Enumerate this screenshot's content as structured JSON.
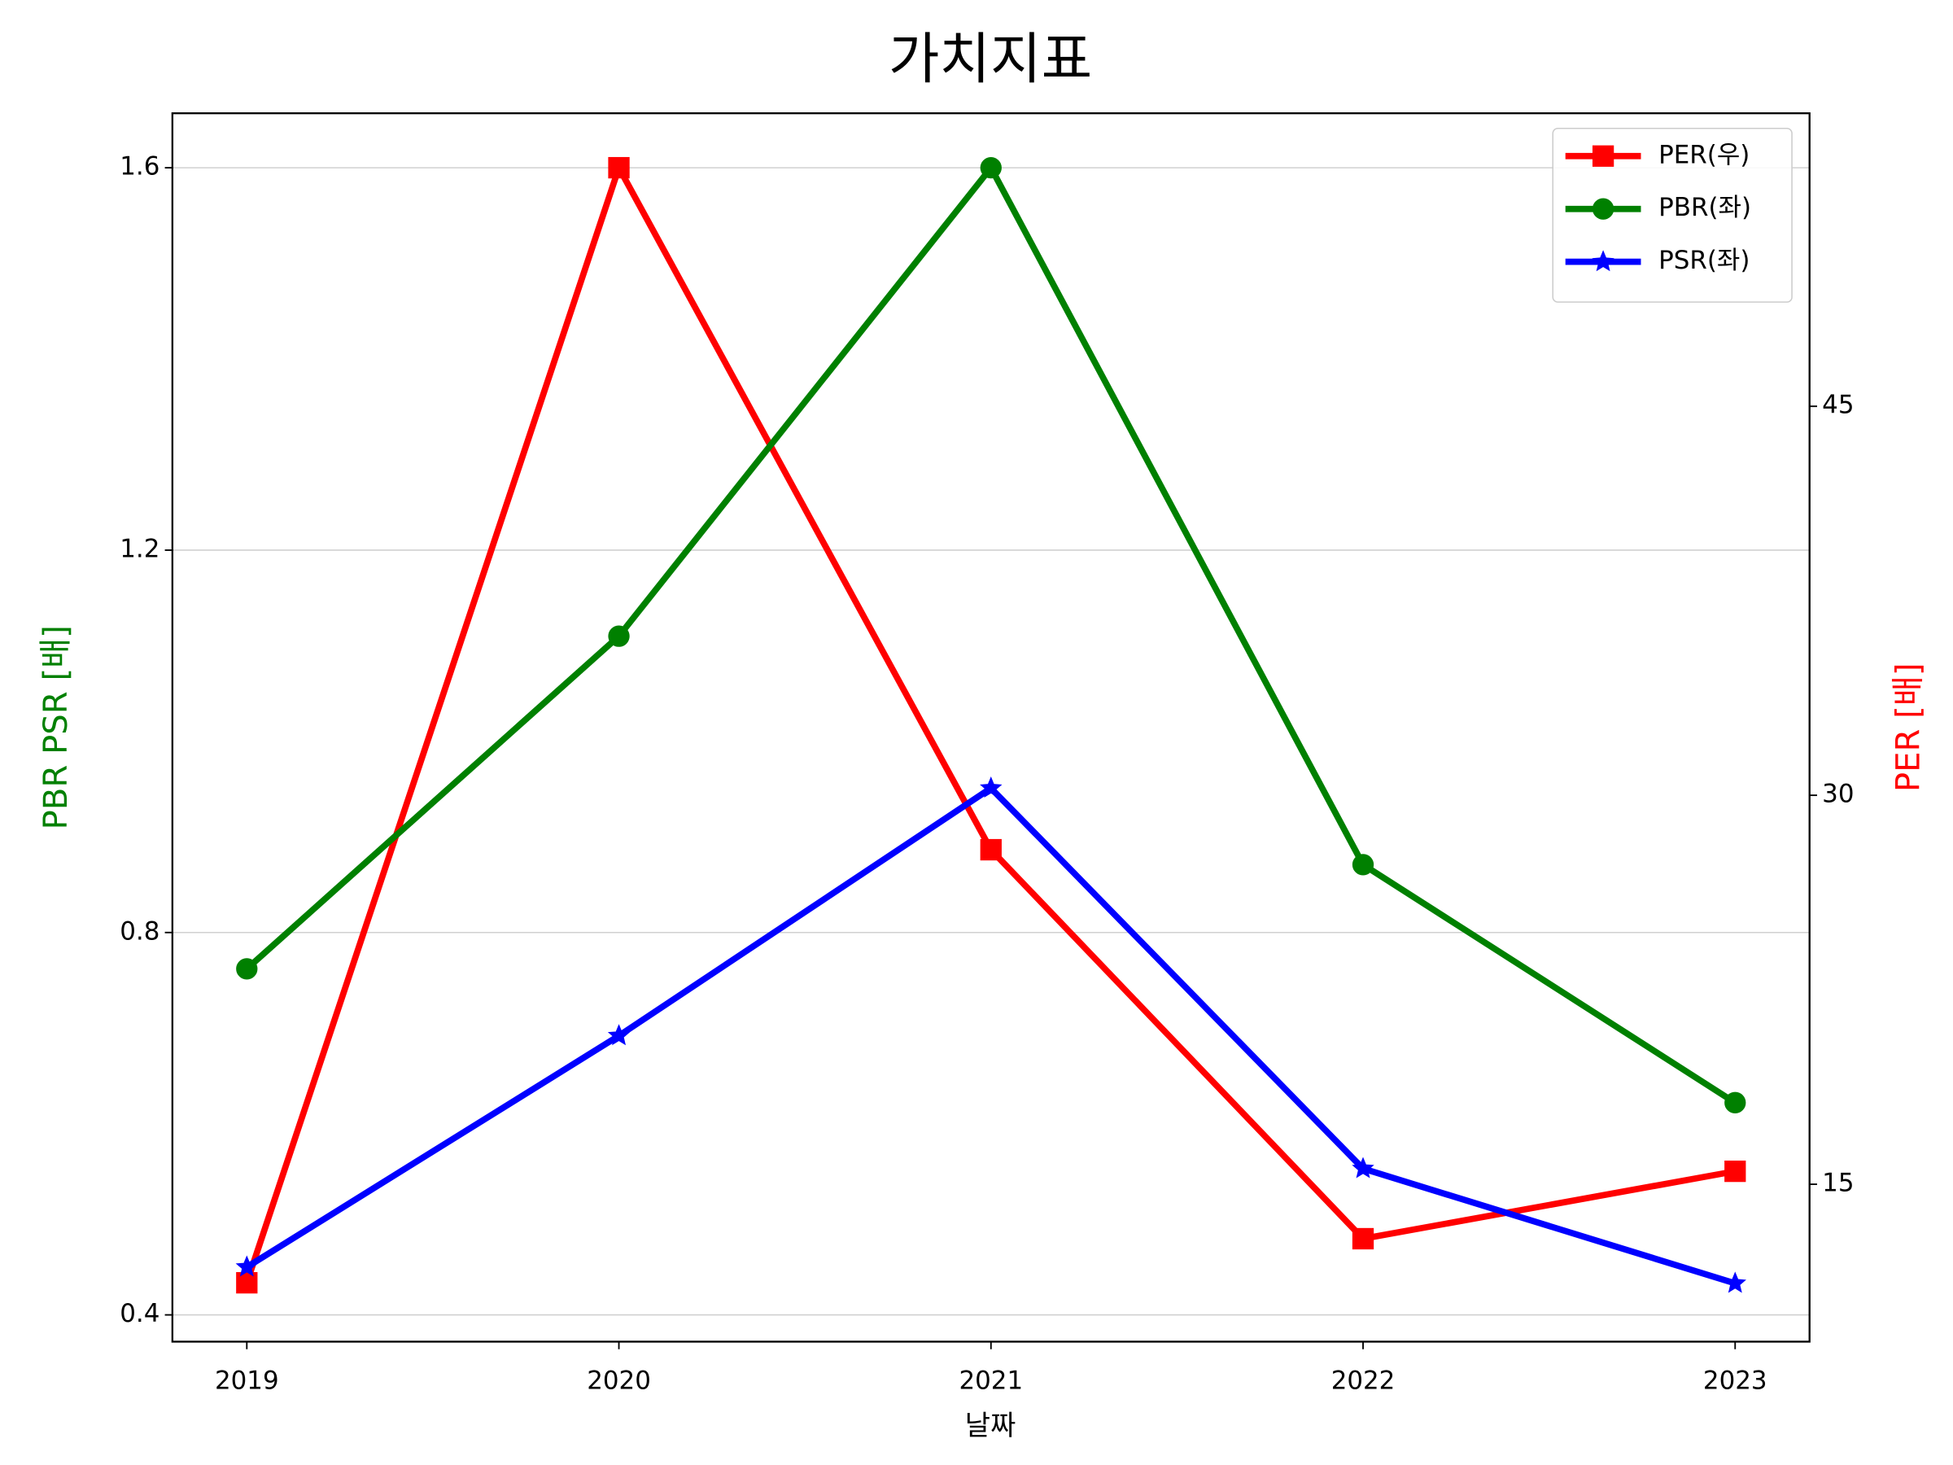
{
  "chart_data": {
    "type": "line",
    "title": "가치지표",
    "x_label": "날짜",
    "y_label": "PBR PSR [배]",
    "y_label_color": "green",
    "y2_label": "PER [배]",
    "y2_label_color": "red",
    "categories": [
      "2019",
      "2020",
      "2021",
      "2022",
      "2023"
    ],
    "series": [
      {
        "name": "PER(우)",
        "color": "red",
        "marker": "square",
        "axis": "y2",
        "values": [
          11.2,
          54.2,
          27.9,
          12.9,
          15.5
        ]
      },
      {
        "name": "PBR(좌)",
        "color": "green",
        "marker": "circle",
        "values": [
          0.762,
          1.11,
          1.6,
          0.871,
          0.622
        ]
      },
      {
        "name": "PSR(좌)",
        "color": "blue",
        "marker": "star",
        "values": [
          0.45,
          0.692,
          0.951,
          0.553,
          0.433
        ]
      }
    ],
    "ylim": [
      0.372,
      1.657
    ],
    "yticks": [
      0.4,
      0.8,
      1.2,
      1.6
    ],
    "y2lim": [
      8.93,
      56.3
    ],
    "y2ticks": [
      15,
      30,
      45
    ],
    "grid": true,
    "legend": "upper right"
  }
}
